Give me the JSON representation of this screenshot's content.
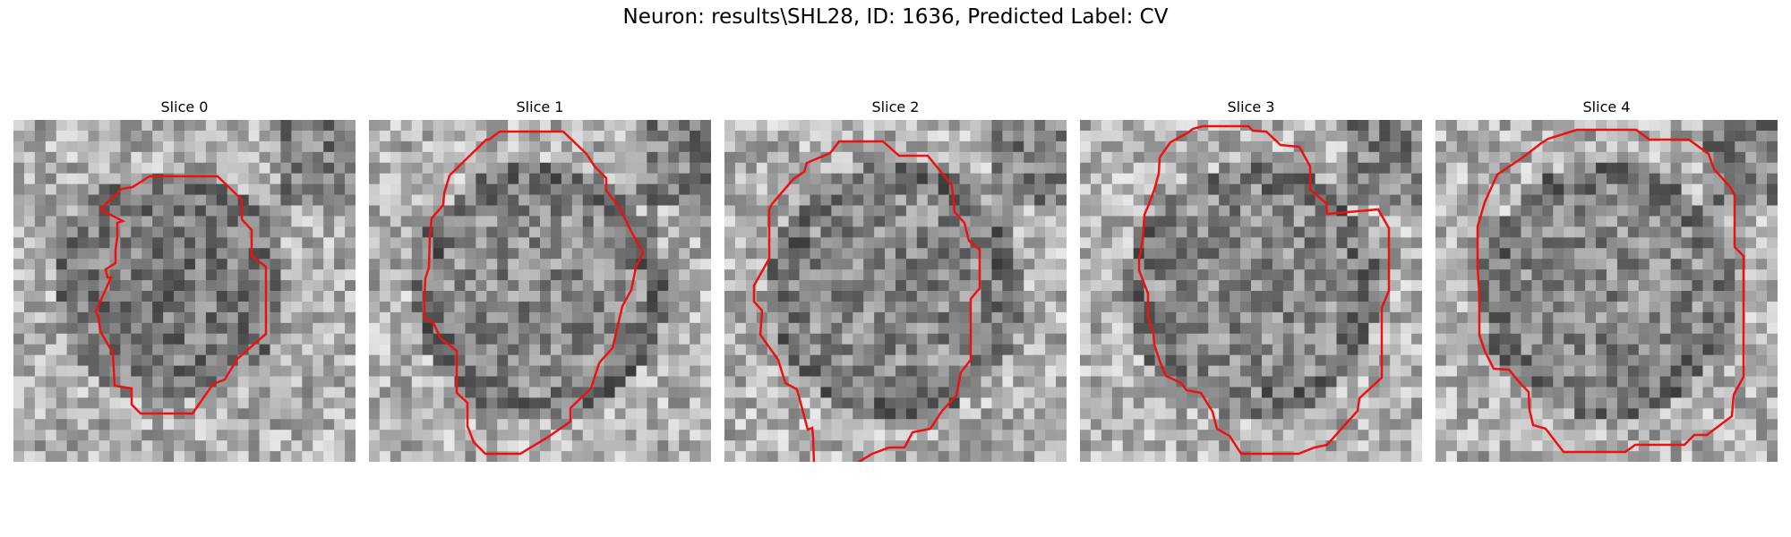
{
  "figure": {
    "title": "Neuron: results\\SHL28, ID: 1636, Predicted Label: CV",
    "panels": [
      {
        "title": "Slice 0"
      },
      {
        "title": "Slice 1"
      },
      {
        "title": "Slice 2"
      },
      {
        "title": "Slice 3"
      },
      {
        "title": "Slice 4"
      }
    ]
  },
  "colors": {
    "contour": "#ee1111",
    "colormap": "gray"
  }
}
